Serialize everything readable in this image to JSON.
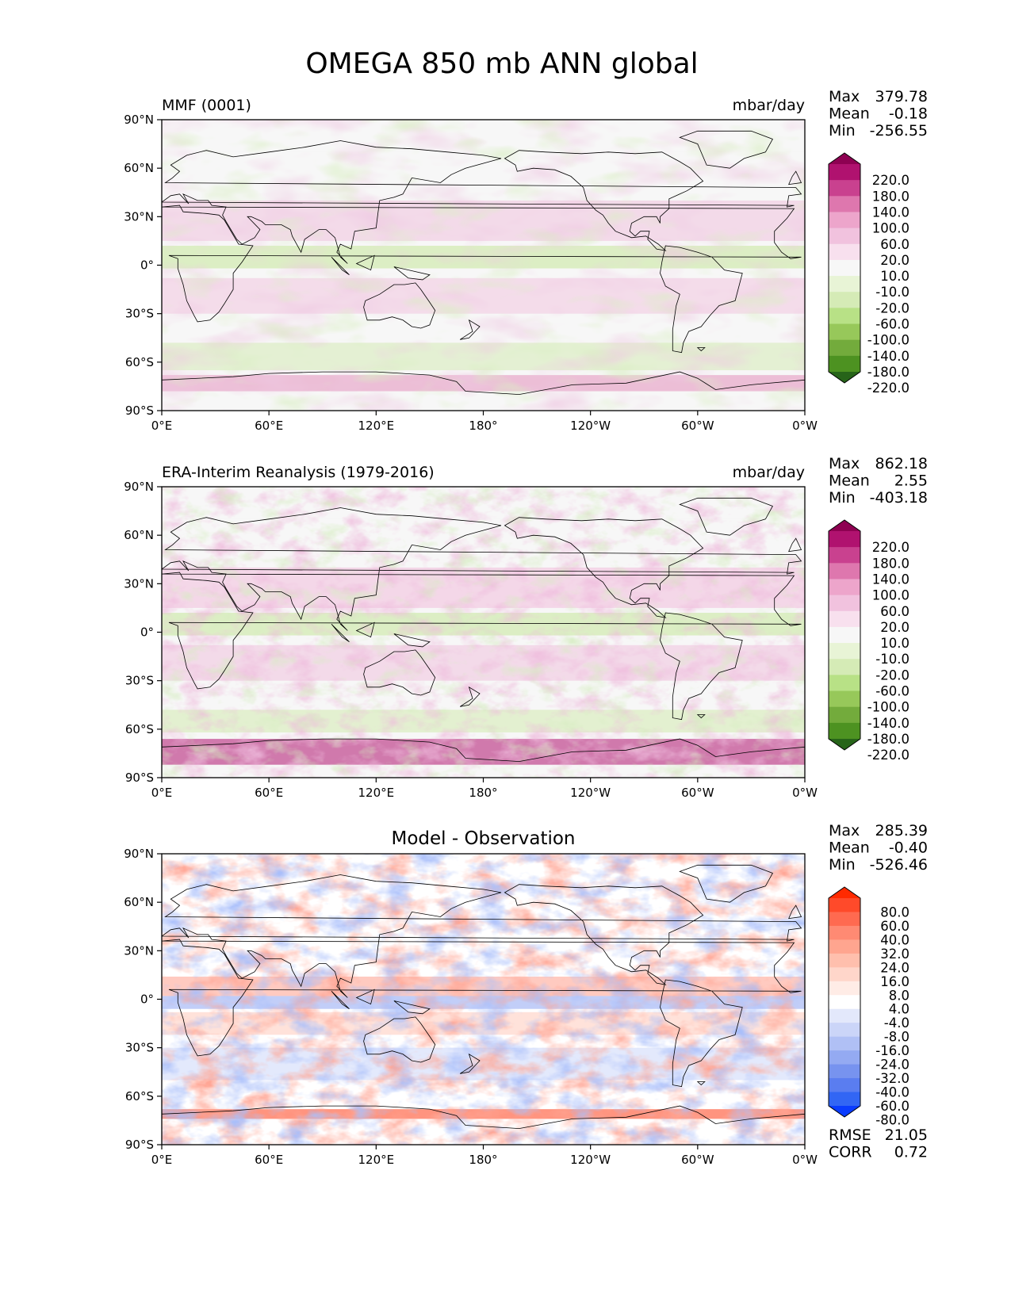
{
  "figure": {
    "title": "OMEGA 850 mb ANN global"
  },
  "panels": [
    {
      "id": "model",
      "left_label": "MMF (0001)",
      "center_label": "",
      "right_label": "mbar/day",
      "stats": [
        {
          "name": "Max",
          "value": "379.78"
        },
        {
          "name": "Mean",
          "value": "-0.18"
        },
        {
          "name": "Min",
          "value": "-256.55"
        }
      ],
      "metrics": [],
      "colorbar": {
        "labels": [
          "220.0",
          "180.0",
          "140.0",
          "100.0",
          "60.0",
          "20.0",
          "10.0",
          "-10.0",
          "-20.0",
          "-60.0",
          "-100.0",
          "-140.0",
          "-180.0",
          "-220.0"
        ],
        "colors": [
          "#8e0152",
          "#b0126f",
          "#c9418f",
          "#de77ae",
          "#eda5cb",
          "#f1c2de",
          "#f8e0ee",
          "#f7f7f7",
          "#e8f4d6",
          "#d5ebb6",
          "#b8e186",
          "#97c85a",
          "#73ab3c",
          "#4d9221",
          "#276419"
        ]
      }
    },
    {
      "id": "obs",
      "left_label": "ERA-Interim Reanalysis (1979-2016)",
      "center_label": "",
      "right_label": "mbar/day",
      "stats": [
        {
          "name": "Max",
          "value": "862.18"
        },
        {
          "name": "Mean",
          "value": "2.55"
        },
        {
          "name": "Min",
          "value": "-403.18"
        }
      ],
      "metrics": [],
      "colorbar": {
        "labels": [
          "220.0",
          "180.0",
          "140.0",
          "100.0",
          "60.0",
          "20.0",
          "10.0",
          "-10.0",
          "-20.0",
          "-60.0",
          "-100.0",
          "-140.0",
          "-180.0",
          "-220.0"
        ],
        "colors": [
          "#8e0152",
          "#b0126f",
          "#c9418f",
          "#de77ae",
          "#eda5cb",
          "#f1c2de",
          "#f8e0ee",
          "#f7f7f7",
          "#e8f4d6",
          "#d5ebb6",
          "#b8e186",
          "#97c85a",
          "#73ab3c",
          "#4d9221",
          "#276419"
        ]
      }
    },
    {
      "id": "diff",
      "left_label": "",
      "center_label": "Model - Observation",
      "right_label": "",
      "stats": [
        {
          "name": "Max",
          "value": "285.39"
        },
        {
          "name": "Mean",
          "value": "-0.40"
        },
        {
          "name": "Min",
          "value": "-526.46"
        }
      ],
      "metrics": [
        {
          "name": "RMSE",
          "value": "21.05"
        },
        {
          "name": "CORR",
          "value": "0.72"
        }
      ],
      "colorbar": {
        "labels": [
          "80.0",
          "60.0",
          "40.0",
          "32.0",
          "24.0",
          "16.0",
          "8.0",
          "4.0",
          "-4.0",
          "-8.0",
          "-16.0",
          "-24.0",
          "-32.0",
          "-40.0",
          "-60.0",
          "-80.0"
        ],
        "colors": [
          "#ff2a00",
          "#ff4a2a",
          "#ff6a50",
          "#ff8a73",
          "#ffa58f",
          "#ffbfad",
          "#ffd6ca",
          "#ffecE6",
          "#ffffff",
          "#e3e8fb",
          "#cbd5f8",
          "#b0c0f5",
          "#94aaf2",
          "#7793ef",
          "#5a7df0",
          "#3266f4",
          "#0a3cff"
        ]
      }
    }
  ],
  "axes": {
    "x_ticks": [
      "0°E",
      "60°E",
      "120°E",
      "180°",
      "120°W",
      "60°W",
      "0°W"
    ],
    "y_ticks": [
      "90°N",
      "60°N",
      "30°N",
      "0°",
      "30°S",
      "60°S",
      "90°S"
    ]
  }
}
